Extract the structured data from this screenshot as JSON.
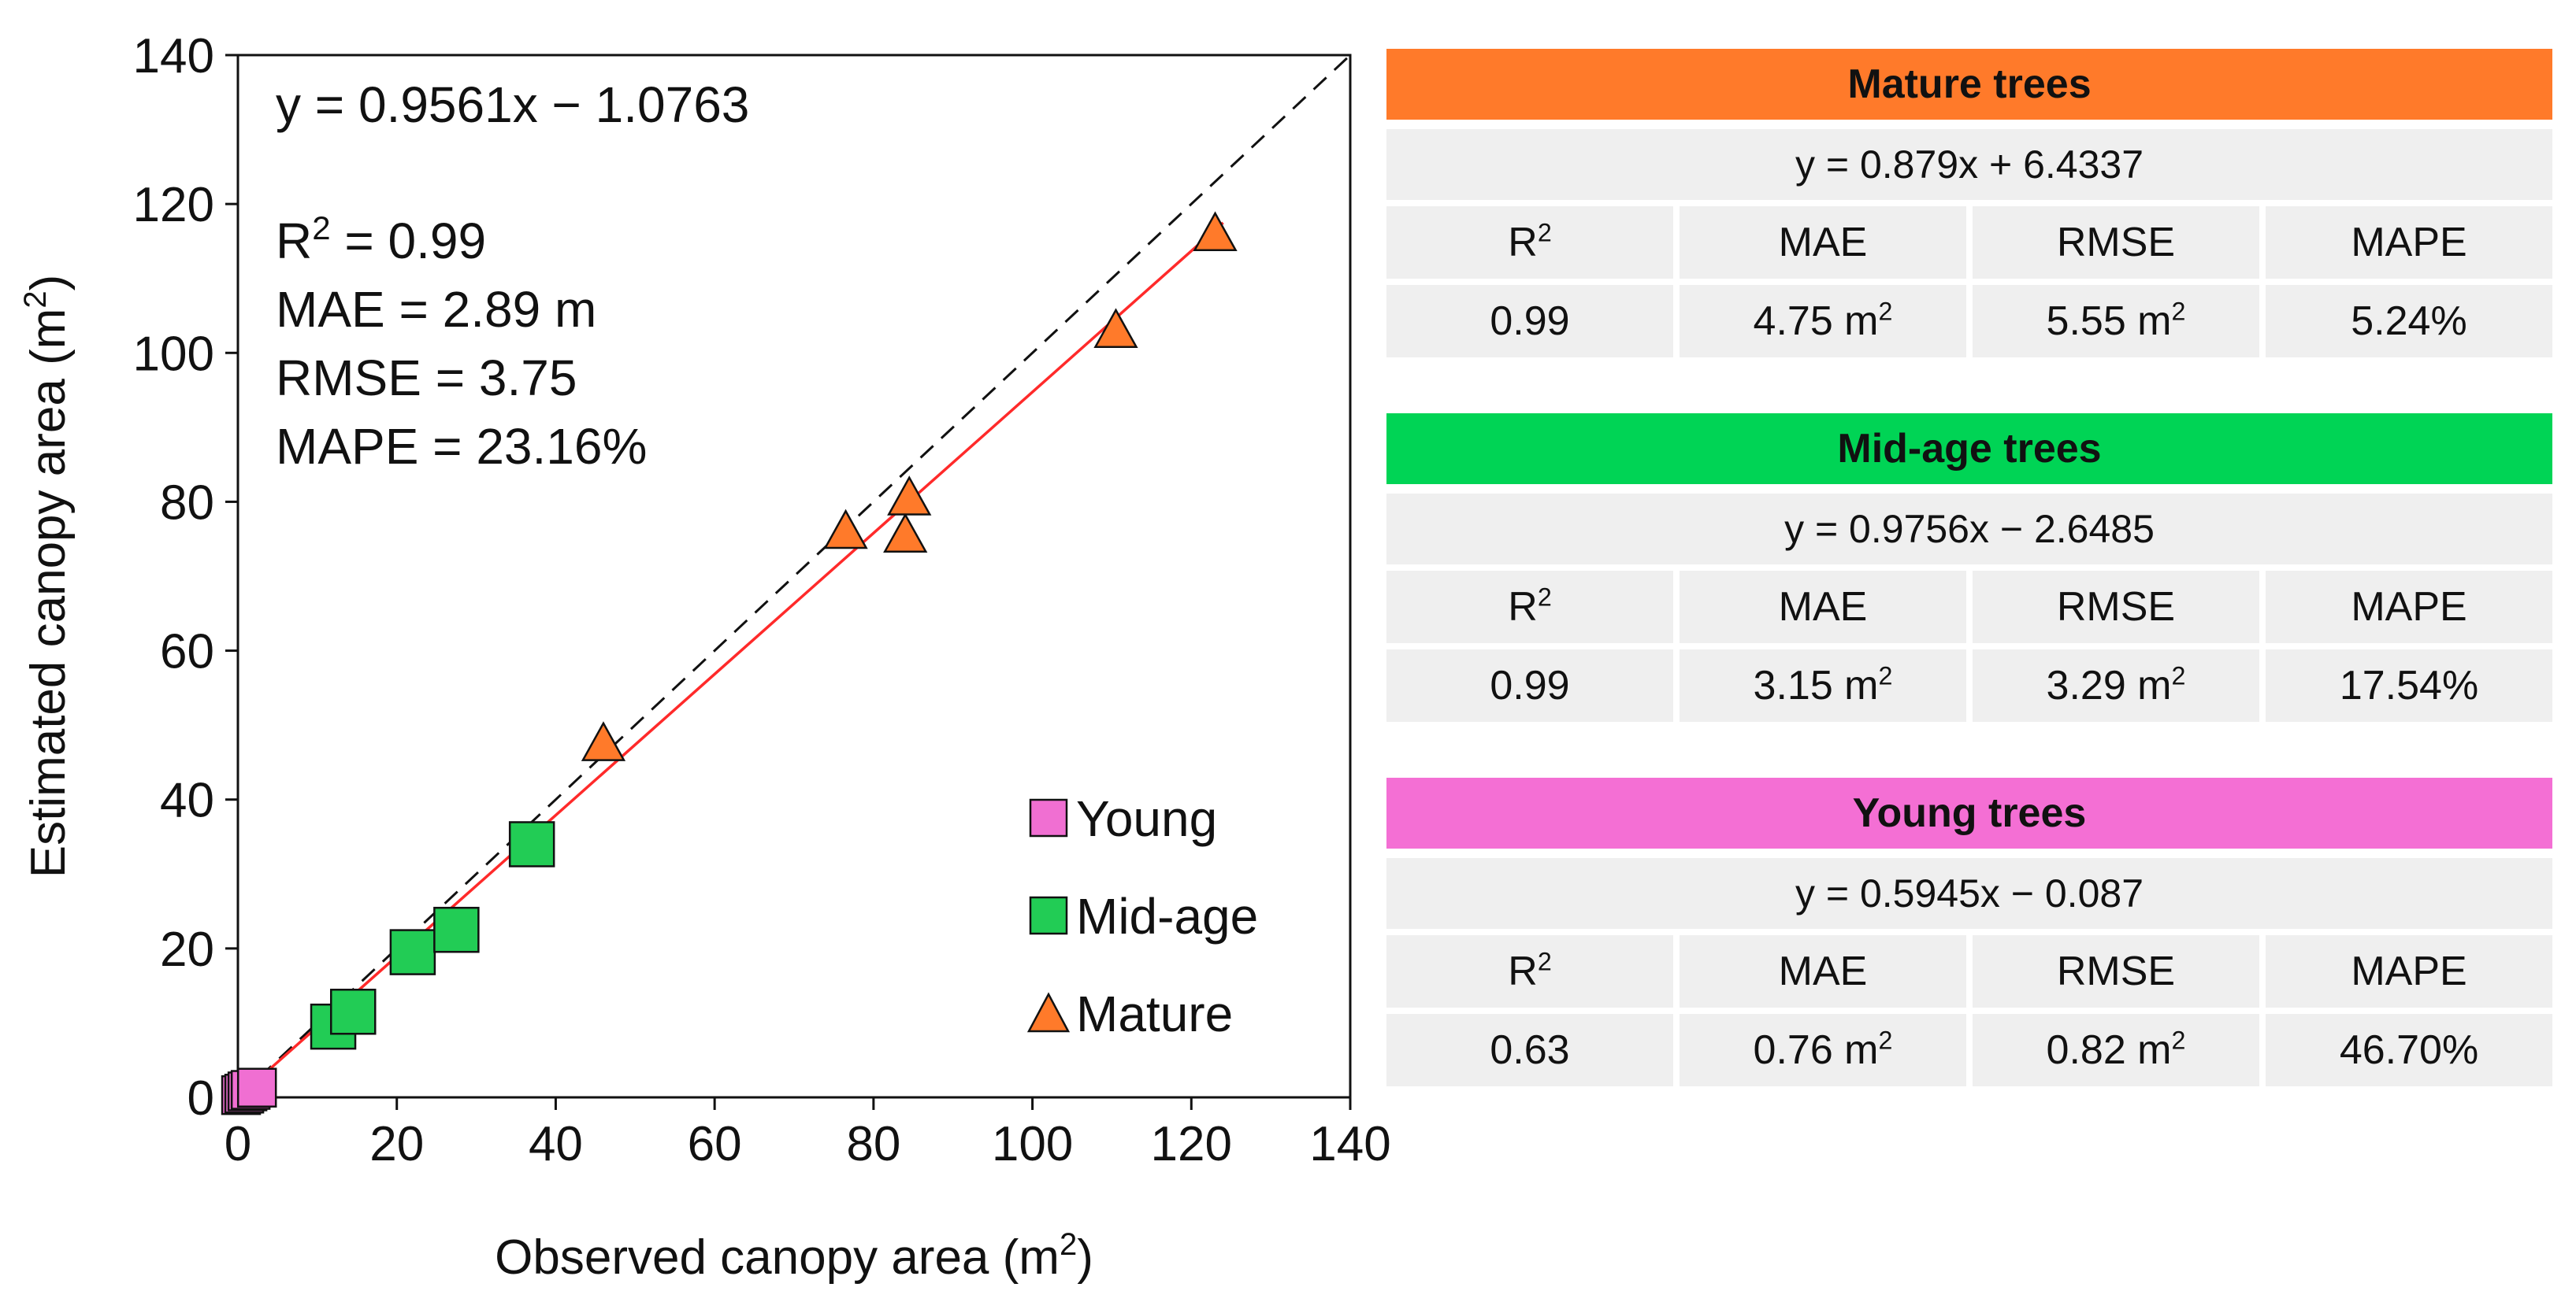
{
  "chart_data": {
    "type": "scatter",
    "xlabel_main": "Observed canopy area (m",
    "xlabel_sup": "2",
    "xlabel_end": ")",
    "ylabel_main": "Estimated canopy area (m",
    "ylabel_sup": "2",
    "ylabel_end": ")",
    "xlim": [
      0,
      140
    ],
    "ylim": [
      0,
      140
    ],
    "xticks": [
      0,
      20,
      40,
      60,
      80,
      100,
      120,
      140
    ],
    "yticks": [
      0,
      20,
      40,
      60,
      80,
      100,
      120,
      140
    ],
    "grid": false,
    "reference_line": "1:1",
    "fit": {
      "slope": 0.9561,
      "intercept": -1.0763
    },
    "annotations": {
      "equation": "y = 0.9561x − 1.0763",
      "r2_label": "R",
      "r2_sup": "2",
      "r2_value": " = 0.99",
      "mae": "MAE = 2.89 m",
      "rmse": "RMSE = 3.75",
      "mape": "MAPE = 23.16%"
    },
    "legend_position": "bottom-right",
    "series": [
      {
        "name": "Young",
        "marker": "square",
        "color": "#f06fd2",
        "points": [
          [
            0.4,
            0.3
          ],
          [
            0.8,
            0.5
          ],
          [
            1.2,
            0.8
          ],
          [
            1.6,
            1.0
          ],
          [
            2.4,
            1.3
          ]
        ]
      },
      {
        "name": "Mid-age",
        "marker": "square",
        "color": "#22cc55",
        "points": [
          [
            12,
            9.5
          ],
          [
            14.5,
            11.5
          ],
          [
            22,
            19.5
          ],
          [
            27.5,
            22.5
          ],
          [
            37,
            34
          ]
        ]
      },
      {
        "name": "Mature",
        "marker": "triangle",
        "color": "#ff7a2a",
        "points": [
          [
            46,
            47.5
          ],
          [
            76.5,
            76
          ],
          [
            84,
            75.5
          ],
          [
            84.5,
            80.5
          ],
          [
            110.5,
            103
          ],
          [
            123,
            116
          ]
        ]
      }
    ]
  },
  "panels": {
    "mature": {
      "title": "Mature trees",
      "color": "#ff7a2a",
      "equation": "y = 0.879x + 6.4337",
      "h_r2": "R",
      "h_r2_sup": "2",
      "h_mae": "MAE",
      "h_rmse": "RMSE",
      "h_mape": "MAPE",
      "r2": "0.99",
      "mae": "4.75 m",
      "mae_sup": "2",
      "rmse": "5.55 m",
      "rmse_sup": "2",
      "mape": "5.24%"
    },
    "mid": {
      "title": "Mid-age trees",
      "color": "#00d455",
      "equation": "y = 0.9756x − 2.6485",
      "h_r2": "R",
      "h_r2_sup": "2",
      "h_mae": "MAE",
      "h_rmse": "RMSE",
      "h_mape": "MAPE",
      "r2": "0.99",
      "mae": "3.15 m",
      "mae_sup": "2",
      "rmse": "3.29 m",
      "rmse_sup": "2",
      "mape": "17.54%"
    },
    "young": {
      "title": "Young trees",
      "color": "#f46fd4",
      "equation": "y = 0.5945x − 0.087",
      "h_r2": "R",
      "h_r2_sup": "2",
      "h_mae": "MAE",
      "h_rmse": "RMSE",
      "h_mape": "MAPE",
      "r2": "0.63",
      "mae": "0.76 m",
      "mae_sup": "2",
      "rmse": "0.82 m",
      "rmse_sup": "2",
      "mape": "46.70%"
    }
  }
}
